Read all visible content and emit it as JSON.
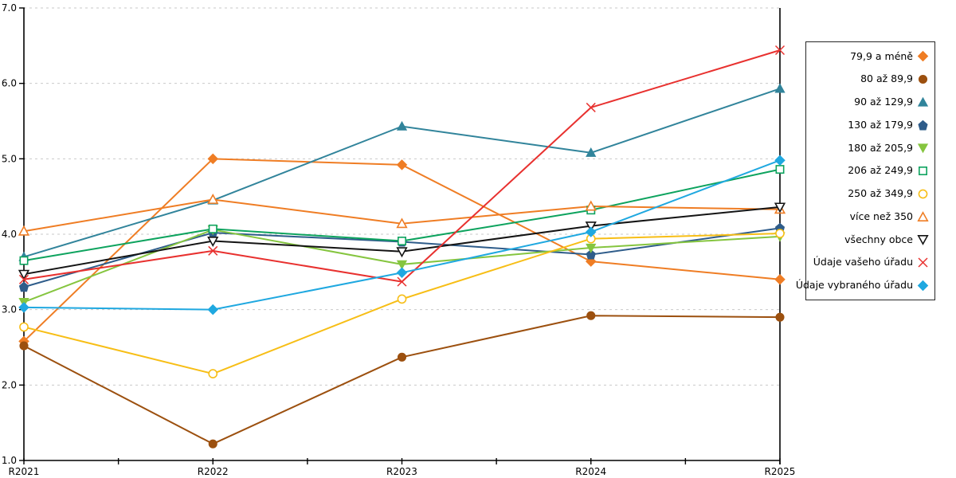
{
  "chart_data": {
    "type": "line",
    "title": "",
    "xlabel": "",
    "ylabel": "",
    "categories": [
      "R2021",
      "R2022",
      "R2023",
      "R2024",
      "R2025"
    ],
    "ylim": [
      1.0,
      7.0
    ],
    "y_tick_labels": [
      "7.0",
      "6.0",
      "5.0",
      "4.0",
      "3.0",
      "2.0",
      "1.0"
    ],
    "y_tick_values": [
      7,
      6,
      5,
      4,
      3,
      2,
      1
    ],
    "grid": "horizontal-dashed",
    "legend_position": "right-outside-box",
    "x_minor_ticks_at_midpoints": true,
    "series": [
      {
        "name": "79,9 a méně",
        "color": "#EF7D24",
        "marker": "diamond",
        "style": "solid",
        "values": [
          2.58,
          5.0,
          4.92,
          3.64,
          3.4
        ]
      },
      {
        "name": "80 až 89,9",
        "color": "#9C500F",
        "marker": "circle",
        "style": "solid",
        "values": [
          2.52,
          1.22,
          2.37,
          2.92,
          2.9
        ]
      },
      {
        "name": "90 až 129,9",
        "color": "#31849B",
        "marker": "triangle-up",
        "style": "solid",
        "values": [
          3.7,
          4.45,
          5.43,
          5.08,
          5.93
        ]
      },
      {
        "name": "130 až 179,9",
        "color": "#2E5C8A",
        "marker": "pentagon",
        "style": "solid",
        "values": [
          3.3,
          4.02,
          3.9,
          3.73,
          4.08
        ]
      },
      {
        "name": "180 až 205,9",
        "color": "#85C53F",
        "marker": "triangle-down",
        "style": "solid",
        "values": [
          3.1,
          4.06,
          3.6,
          3.82,
          3.97
        ]
      },
      {
        "name": "206 až 249,9",
        "color": "#0DA35E",
        "marker": "square",
        "style": "open",
        "values": [
          3.65,
          4.07,
          3.91,
          4.32,
          4.86
        ]
      },
      {
        "name": "250 až 349,9",
        "color": "#F7BE16",
        "marker": "circle",
        "style": "open",
        "values": [
          2.77,
          2.15,
          3.14,
          3.94,
          4.01
        ]
      },
      {
        "name": "více než 350",
        "color": "#EF7D24",
        "marker": "triangle-up",
        "style": "open",
        "values": [
          4.04,
          4.46,
          4.14,
          4.37,
          4.33
        ]
      },
      {
        "name": "všechny obce",
        "color": "#141414",
        "marker": "triangle-down",
        "style": "open",
        "values": [
          3.47,
          3.91,
          3.77,
          4.11,
          4.36
        ]
      },
      {
        "name": "Údaje vašeho úřadu",
        "color": "#E8312F",
        "marker": "x",
        "style": "line",
        "values": [
          3.4,
          3.78,
          3.37,
          5.68,
          6.44
        ]
      },
      {
        "name": "Údaje vybraného úřadu",
        "color": "#1FA8E0",
        "marker": "diamond",
        "style": "solid",
        "values": [
          3.03,
          3.0,
          3.49,
          4.03,
          4.98
        ]
      }
    ],
    "colors": {
      "axis": "#000000",
      "gridline": "#c9c9c9",
      "background": "#ffffff",
      "legend_border": "#262626"
    }
  }
}
